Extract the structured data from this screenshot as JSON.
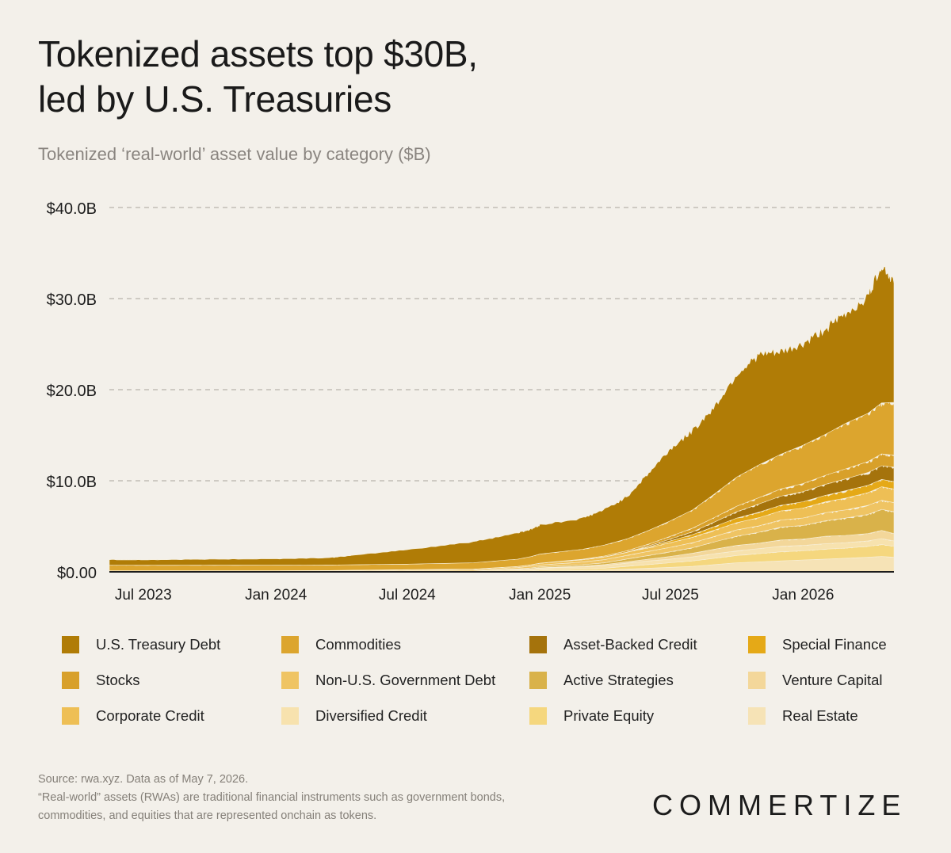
{
  "header": {
    "title_line1": "Tokenized assets top $30B,",
    "title_line2": "led by U.S. Treasuries",
    "subtitle": "Tokenized ‘real-world’ asset value by category ($B)"
  },
  "footer": {
    "source": "Source: rwa.xyz. Data as of May 7, 2026.",
    "note_line1": "“Real-world” assets (RWAs) are traditional financial instruments such as government bonds,",
    "note_line2": "commodities, and equities that are represented onchain as tokens."
  },
  "brand": {
    "logo_text": "COMMERTIZE"
  },
  "chart_data": {
    "type": "area",
    "stacked": true,
    "ylim": [
      0,
      40
    ],
    "y_ticks": [
      {
        "value": 0,
        "label": "$0.00"
      },
      {
        "value": 10,
        "label": "$10.0B"
      },
      {
        "value": 20,
        "label": "$20.0B"
      },
      {
        "value": 30,
        "label": "$30.0B"
      },
      {
        "value": 40,
        "label": "$40.0B"
      }
    ],
    "xlim": [
      "2023-05-15",
      "2026-05-07"
    ],
    "x_ticks": [
      {
        "date": "2023-07-01",
        "label": "Jul 2023"
      },
      {
        "date": "2024-01-01",
        "label": "Jan 2024"
      },
      {
        "date": "2024-07-01",
        "label": "Jul 2024"
      },
      {
        "date": "2025-01-01",
        "label": "Jan 2025"
      },
      {
        "date": "2025-07-01",
        "label": "Jul 2025"
      },
      {
        "date": "2026-01-01",
        "label": "Jan 2026"
      }
    ],
    "grid": true,
    "legend_position": "bottom",
    "x": [
      "2023-05-15",
      "2023-07-01",
      "2023-10-01",
      "2024-01-01",
      "2024-03-15",
      "2024-04-15",
      "2024-07-01",
      "2024-10-01",
      "2024-12-01",
      "2024-12-20",
      "2025-01-01",
      "2025-03-01",
      "2025-04-01",
      "2025-05-01",
      "2025-06-01",
      "2025-07-01",
      "2025-08-01",
      "2025-09-01",
      "2025-10-01",
      "2025-11-01",
      "2025-12-01",
      "2026-01-01",
      "2026-02-01",
      "2026-03-01",
      "2026-04-01",
      "2026-04-20",
      "2026-05-07"
    ],
    "series": [
      {
        "name": "Real Estate",
        "color": "#f6e3b6",
        "values": [
          0,
          0,
          0,
          0,
          0,
          0,
          0,
          0,
          0.05,
          0.05,
          0.1,
          0.15,
          0.2,
          0.3,
          0.4,
          0.5,
          0.6,
          0.8,
          1.0,
          1.1,
          1.2,
          1.3,
          1.4,
          1.5,
          1.6,
          1.7,
          1.6
        ]
      },
      {
        "name": "Private Equity",
        "color": "#f5d77e",
        "values": [
          0,
          0,
          0,
          0,
          0,
          0,
          0,
          0,
          0.05,
          0.05,
          0.1,
          0.15,
          0.2,
          0.3,
          0.4,
          0.5,
          0.6,
          0.7,
          0.8,
          0.9,
          1.0,
          1.0,
          1.1,
          1.1,
          1.2,
          1.3,
          1.2
        ]
      },
      {
        "name": "Diversified Credit",
        "color": "#f7e2ae",
        "values": [
          0.02,
          0.02,
          0.03,
          0.03,
          0.05,
          0.06,
          0.08,
          0.1,
          0.15,
          0.2,
          0.2,
          0.25,
          0.3,
          0.35,
          0.4,
          0.4,
          0.45,
          0.5,
          0.5,
          0.55,
          0.6,
          0.6,
          0.6,
          0.6,
          0.6,
          0.65,
          0.6
        ]
      },
      {
        "name": "Venture Capital",
        "color": "#f3d79a",
        "values": [
          0,
          0,
          0,
          0,
          0,
          0,
          0,
          0,
          0.02,
          0.03,
          0.05,
          0.08,
          0.1,
          0.15,
          0.2,
          0.3,
          0.4,
          0.5,
          0.6,
          0.6,
          0.7,
          0.7,
          0.8,
          0.8,
          0.8,
          0.9,
          0.8
        ]
      },
      {
        "name": "Active Strategies",
        "color": "#d9b24a",
        "values": [
          0,
          0,
          0,
          0,
          0,
          0,
          0,
          0,
          0.05,
          0.1,
          0.1,
          0.15,
          0.2,
          0.3,
          0.4,
          0.5,
          0.6,
          0.8,
          1.0,
          1.2,
          1.4,
          1.5,
          1.7,
          1.9,
          2.1,
          2.3,
          2.4
        ]
      },
      {
        "name": "Non-U.S. Government Debt",
        "color": "#efc463",
        "values": [
          0.05,
          0.05,
          0.05,
          0.05,
          0.05,
          0.06,
          0.08,
          0.1,
          0.15,
          0.2,
          0.2,
          0.3,
          0.35,
          0.4,
          0.45,
          0.5,
          0.55,
          0.6,
          0.7,
          0.7,
          0.8,
          0.8,
          0.9,
          0.9,
          1.0,
          1.0,
          1.0
        ]
      },
      {
        "name": "Corporate Credit",
        "color": "#eebf55",
        "values": [
          0.05,
          0.05,
          0.05,
          0.05,
          0.05,
          0.06,
          0.08,
          0.1,
          0.12,
          0.15,
          0.2,
          0.25,
          0.3,
          0.35,
          0.4,
          0.5,
          0.6,
          0.7,
          0.8,
          0.9,
          1.0,
          1.1,
          1.2,
          1.3,
          1.4,
          1.5,
          1.5
        ]
      },
      {
        "name": "Special Finance",
        "color": "#e5a917",
        "values": [
          0,
          0,
          0,
          0,
          0,
          0,
          0,
          0,
          0,
          0,
          0,
          0,
          0,
          0,
          0.1,
          0.2,
          0.3,
          0.4,
          0.5,
          0.6,
          0.6,
          0.7,
          0.7,
          0.8,
          0.8,
          0.8,
          0.8
        ]
      },
      {
        "name": "Asset-Backed Credit",
        "color": "#a5730c",
        "values": [
          0,
          0,
          0,
          0,
          0,
          0,
          0,
          0,
          0,
          0,
          0,
          0,
          0,
          0,
          0.1,
          0.2,
          0.3,
          0.5,
          0.7,
          0.9,
          1.0,
          1.1,
          1.2,
          1.3,
          1.4,
          1.5,
          1.6
        ]
      },
      {
        "name": "Stocks",
        "color": "#d8a02a",
        "values": [
          0,
          0,
          0,
          0,
          0,
          0,
          0,
          0,
          0,
          0,
          0,
          0.05,
          0.1,
          0.15,
          0.2,
          0.3,
          0.4,
          0.5,
          0.6,
          0.7,
          0.8,
          0.9,
          1.0,
          1.1,
          1.2,
          1.3,
          1.3
        ]
      },
      {
        "name": "Commodities",
        "color": "#dca52e",
        "values": [
          0.6,
          0.6,
          0.6,
          0.6,
          0.6,
          0.6,
          0.6,
          0.7,
          0.8,
          0.9,
          1.0,
          1.1,
          1.2,
          1.3,
          1.5,
          1.7,
          2.0,
          2.6,
          3.2,
          3.6,
          3.8,
          4.2,
          4.5,
          5.0,
          5.3,
          5.6,
          5.8
        ]
      },
      {
        "name": "U.S. Treasury Debt",
        "color": "#b07c06",
        "values": [
          0.6,
          0.6,
          0.65,
          0.7,
          0.8,
          1.0,
          1.6,
          2.3,
          2.9,
          3.0,
          3.2,
          3.4,
          3.9,
          4.6,
          6.3,
          7.9,
          8.7,
          9.6,
          11.3,
          12.1,
          11.2,
          11.1,
          11.6,
          12.0,
          12.8,
          15.2,
          13.1
        ]
      }
    ]
  },
  "legend": {
    "items": [
      {
        "label": "U.S. Treasury Debt",
        "color": "#b07c06"
      },
      {
        "label": "Commodities",
        "color": "#dca52e"
      },
      {
        "label": "Asset-Backed Credit",
        "color": "#a5730c"
      },
      {
        "label": "Special Finance",
        "color": "#e5a917"
      },
      {
        "label": "Stocks",
        "color": "#d8a02a"
      },
      {
        "label": "Non-U.S. Government Debt",
        "color": "#efc463"
      },
      {
        "label": "Active Strategies",
        "color": "#d9b24a"
      },
      {
        "label": "Venture Capital",
        "color": "#f3d79a"
      },
      {
        "label": "Corporate Credit",
        "color": "#eebf55"
      },
      {
        "label": "Diversified Credit",
        "color": "#f7e2ae"
      },
      {
        "label": "Private Equity",
        "color": "#f5d77e"
      },
      {
        "label": "Real Estate",
        "color": "#f6e3b6"
      }
    ]
  }
}
